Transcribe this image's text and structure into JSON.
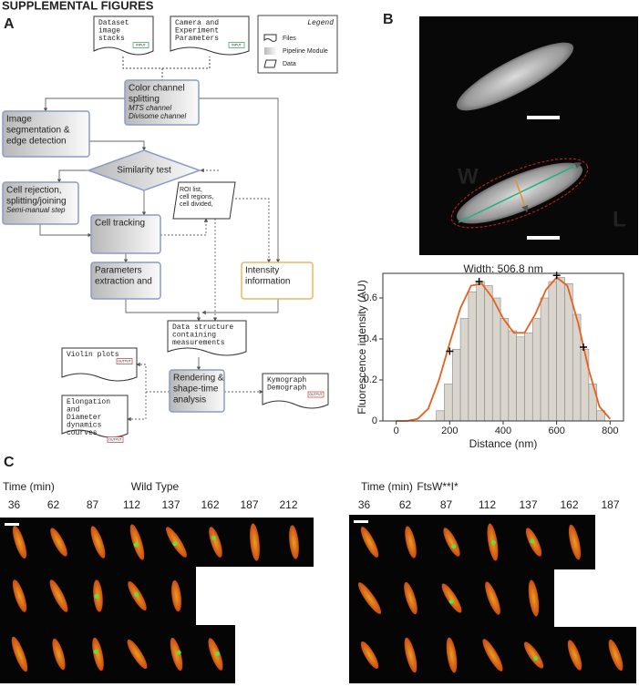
{
  "header": "SUPPLEMENTAL FIGURES",
  "panel_a": {
    "label": "A",
    "legend": {
      "title": "Legend",
      "items": [
        "Files",
        "Pipeline Module",
        "Data"
      ]
    },
    "files": [
      {
        "lines": [
          "Dataset",
          "image",
          "stacks"
        ],
        "tag": "INPUT"
      },
      {
        "lines": [
          "Camera and",
          "Experiment",
          "Parameters"
        ],
        "tag": "INPUT"
      },
      {
        "lines": [
          "Data structure",
          "containing",
          "measurements"
        ]
      },
      {
        "lines": [
          "Violin plots"
        ],
        "tag": "OUTPUT"
      },
      {
        "lines": [
          "Kymograph",
          "Demograph"
        ],
        "tag": "OUTPUT"
      },
      {
        "lines": [
          "Elongation",
          "and",
          "Diameter",
          "dynamics",
          "courves"
        ],
        "tag": "OUTPUT"
      }
    ],
    "modules": [
      {
        "lines": [
          "Color channel",
          "splitting"
        ],
        "notes": [
          "MTS channel",
          "Divisome channel"
        ]
      },
      {
        "lines": [
          "Image",
          "segmentation &",
          "edge detection"
        ]
      },
      {
        "lines": [
          "Cell rejection,",
          "splitting/joining"
        ],
        "notes": [
          "Semi-manual step"
        ]
      },
      {
        "lines": [
          "Cell tracking"
        ]
      },
      {
        "lines": [
          "Parameters",
          "extraction and"
        ]
      },
      {
        "lines": [
          "Intensity",
          "information"
        ]
      },
      {
        "lines": [
          "Rendering &",
          "shape-time",
          "analysis"
        ]
      }
    ],
    "decision": "Similarity test",
    "data": {
      "lines": [
        "ROI list,",
        "cell regions,",
        "cell divided,"
      ]
    }
  },
  "panel_b": {
    "label": "B",
    "width_marker": "W",
    "length_marker": "L"
  },
  "chart_data": {
    "type": "histogram",
    "title": "Width: 506.8 nm",
    "x_label": "Distance (nm)",
    "y_label": "Fluorescence intensity (AU)",
    "bins": [
      150,
      180,
      210,
      240,
      270,
      300,
      330,
      360,
      390,
      420,
      450,
      480,
      510,
      540,
      570,
      600,
      630,
      660,
      690,
      720,
      750,
      780
    ],
    "values": [
      0.05,
      0.18,
      0.35,
      0.5,
      0.63,
      0.68,
      0.66,
      0.6,
      0.5,
      0.44,
      0.41,
      0.43,
      0.5,
      0.6,
      0.68,
      0.7,
      0.67,
      0.52,
      0.35,
      0.18,
      0.05
    ],
    "bar_color": "#d9d5cc",
    "fit": {
      "color": "#e8601c",
      "x": [
        0,
        40,
        80,
        120,
        160,
        200,
        240,
        280,
        320,
        360,
        400,
        440,
        480,
        520,
        560,
        600,
        640,
        680,
        720,
        760,
        800
      ],
      "y": [
        0,
        0,
        0.01,
        0.06,
        0.2,
        0.38,
        0.55,
        0.66,
        0.67,
        0.6,
        0.5,
        0.43,
        0.43,
        0.52,
        0.64,
        0.7,
        0.66,
        0.48,
        0.25,
        0.07,
        0.01
      ]
    },
    "peaks": {
      "x": [
        200,
        310,
        600,
        700
      ],
      "y": [
        0.34,
        0.68,
        0.71,
        0.36
      ]
    },
    "xlim": [
      -50,
      850
    ],
    "ylim": [
      0,
      0.72
    ],
    "xticks": [
      0,
      200,
      400,
      600,
      800
    ],
    "yticks": [
      0,
      0.2,
      0.4,
      0.6
    ]
  },
  "panel_c": {
    "label": "C",
    "groups": [
      {
        "time_label": "Time (min)",
        "title": "Wild Type",
        "times": [
          36,
          62,
          87,
          112,
          137,
          162,
          187,
          212
        ]
      },
      {
        "time_label": "Time (min)",
        "title": "FtsW**I*",
        "times": [
          36,
          62,
          87,
          112,
          137,
          162,
          187
        ]
      }
    ]
  }
}
